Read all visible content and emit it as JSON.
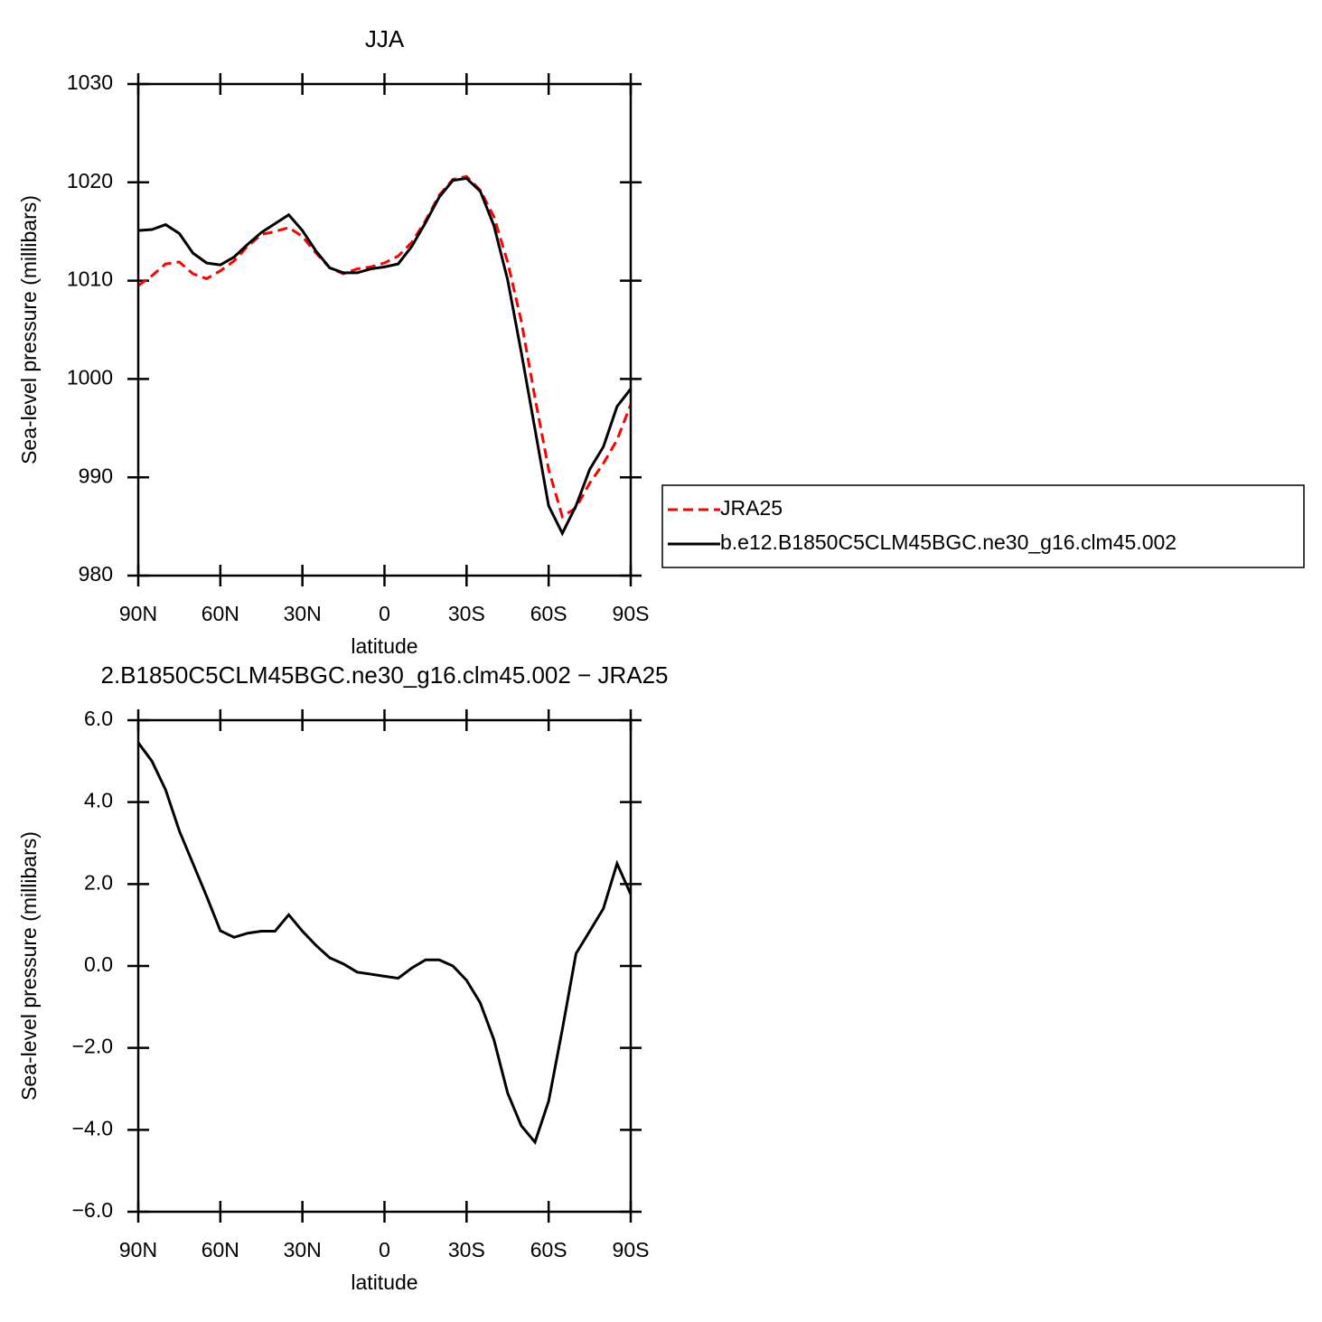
{
  "chart_data": [
    {
      "type": "line",
      "title": "JJA",
      "xlabel": "latitude",
      "ylabel": "Sea-level pressure (millibars)",
      "x": [
        90,
        85,
        80,
        75,
        70,
        65,
        60,
        55,
        50,
        45,
        40,
        35,
        30,
        25,
        20,
        15,
        10,
        5,
        0,
        -5,
        -10,
        -15,
        -20,
        -25,
        -30,
        -35,
        -40,
        -45,
        -50,
        -55,
        -60,
        -65,
        -70,
        -75,
        -80,
        -85,
        -90
      ],
      "series": [
        {
          "name": "JRA25",
          "color": "#ff0000",
          "dash": true,
          "values": [
            1009.5,
            1010.5,
            1011.7,
            1011.9,
            1010.7,
            1010.2,
            1011.0,
            1012.0,
            1013.5,
            1014.7,
            1015.0,
            1015.4,
            1014.5,
            1012.8,
            1011.3,
            1010.7,
            1011.2,
            1011.4,
            1011.8,
            1012.5,
            1013.9,
            1016.1,
            1018.7,
            1020.3,
            1020.6,
            1019.2,
            1016.5,
            1011.9,
            1005.9,
            998.1,
            990.8,
            986.0,
            986.9,
            989.4,
            991.4,
            993.8,
            997.4
          ]
        },
        {
          "name": "b.e12.B1850C5CLM45BGC.ne30_g16.clm45.002",
          "color": "#000000",
          "dash": false,
          "values": [
            1015.1,
            1015.2,
            1015.7,
            1014.8,
            1012.8,
            1011.8,
            1011.6,
            1012.4,
            1013.7,
            1014.9,
            1015.8,
            1016.7,
            1015.1,
            1013.0,
            1011.3,
            1010.8,
            1010.8,
            1011.2,
            1011.4,
            1011.7,
            1013.5,
            1015.9,
            1018.5,
            1020.2,
            1020.4,
            1019.1,
            1015.6,
            1010.1,
            1002.7,
            994.9,
            987.1,
            984.3,
            987.1,
            990.8,
            993.1,
            997.2,
            999.0
          ]
        }
      ],
      "xlim": [
        90,
        -90
      ],
      "xticks": [
        {
          "value": 90,
          "label": "90N"
        },
        {
          "value": 60,
          "label": "60N"
        },
        {
          "value": 30,
          "label": "30N"
        },
        0,
        {
          "value": -30,
          "label": "30S"
        },
        {
          "value": -60,
          "label": "60S"
        },
        {
          "value": -90,
          "label": "90S"
        }
      ],
      "ylim": [
        980,
        1030
      ],
      "yticks": [
        980,
        990,
        1000,
        1010,
        1020,
        1030
      ],
      "legend": "right"
    },
    {
      "type": "line",
      "title": "2.B1850C5CLM45BGC.ne30_g16.clm45.002 − JRA25",
      "xlabel": "latitude",
      "ylabel": "Sea-level pressure (millibars)",
      "x": [
        90,
        85,
        80,
        75,
        70,
        65,
        60,
        55,
        50,
        45,
        40,
        35,
        30,
        25,
        20,
        15,
        10,
        5,
        0,
        -5,
        -10,
        -15,
        -20,
        -25,
        -30,
        -35,
        -40,
        -45,
        -50,
        -55,
        -60,
        -65,
        -70,
        -75,
        -80,
        -85,
        -90
      ],
      "series": [
        {
          "color": "#000000",
          "dash": false,
          "values": [
            5.45,
            5.0,
            4.3,
            3.3,
            2.5,
            1.7,
            0.86,
            0.7,
            0.8,
            0.85,
            0.85,
            1.25,
            0.85,
            0.5,
            0.2,
            0.05,
            -0.15,
            -0.2,
            -0.25,
            -0.3,
            -0.05,
            0.15,
            0.15,
            0.0,
            -0.35,
            -0.9,
            -1.8,
            -3.1,
            -3.9,
            -4.3,
            -3.3,
            -1.55,
            0.3,
            0.85,
            1.4,
            2.5,
            1.75
          ]
        }
      ],
      "xlim": [
        90,
        -90
      ],
      "xticks": [
        {
          "value": 90,
          "label": "90N"
        },
        {
          "value": 60,
          "label": "60N"
        },
        {
          "value": 30,
          "label": "30N"
        },
        0,
        {
          "value": -30,
          "label": "30S"
        },
        {
          "value": -60,
          "label": "60S"
        },
        {
          "value": -90,
          "label": "90S"
        }
      ],
      "ylim": [
        -6,
        6
      ],
      "yticks": [
        {
          "value": -6,
          "label": "−6.0"
        },
        {
          "value": -4,
          "label": "−4.0"
        },
        {
          "value": -2,
          "label": "−2.0"
        },
        {
          "value": 0,
          "label": "0.0"
        },
        {
          "value": 2,
          "label": "2.0"
        },
        {
          "value": 4,
          "label": "4.0"
        },
        {
          "value": 6,
          "label": "6.0"
        }
      ]
    }
  ]
}
